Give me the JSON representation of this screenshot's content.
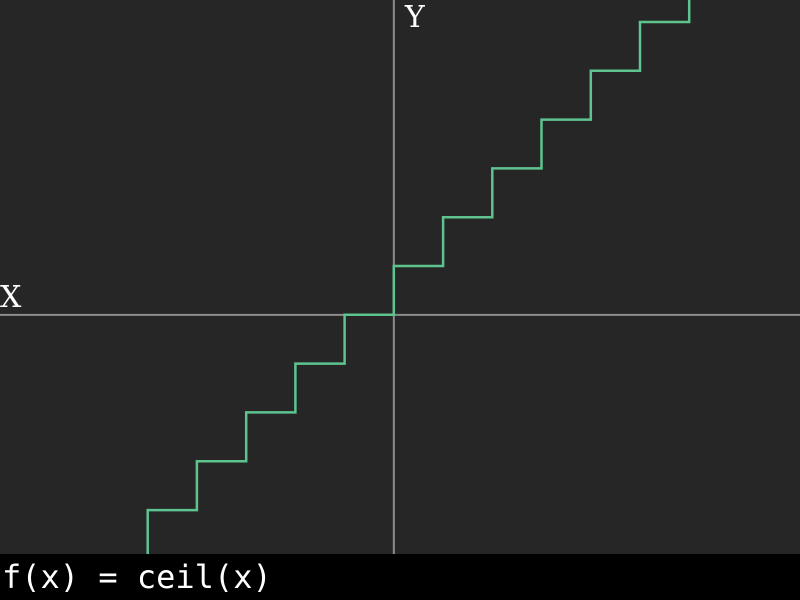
{
  "chart_data": {
    "type": "line",
    "step": true,
    "function": "ceil",
    "xlabel": "X",
    "ylabel": "Y",
    "xlim": [
      -8,
      8.25
    ],
    "ylim": [
      -4.9,
      6.45
    ],
    "x_step": 1,
    "grid": false,
    "series": [
      {
        "color": "#5ec48f",
        "x_range": [
          -5,
          6
        ]
      }
    ]
  },
  "colors": {
    "background": "#262626",
    "axis": "#8c8c8c",
    "curve": "#5ec48f",
    "formula_background": "#000000",
    "text": "#ffffff"
  },
  "formula": "f(x) = ceil(x)"
}
